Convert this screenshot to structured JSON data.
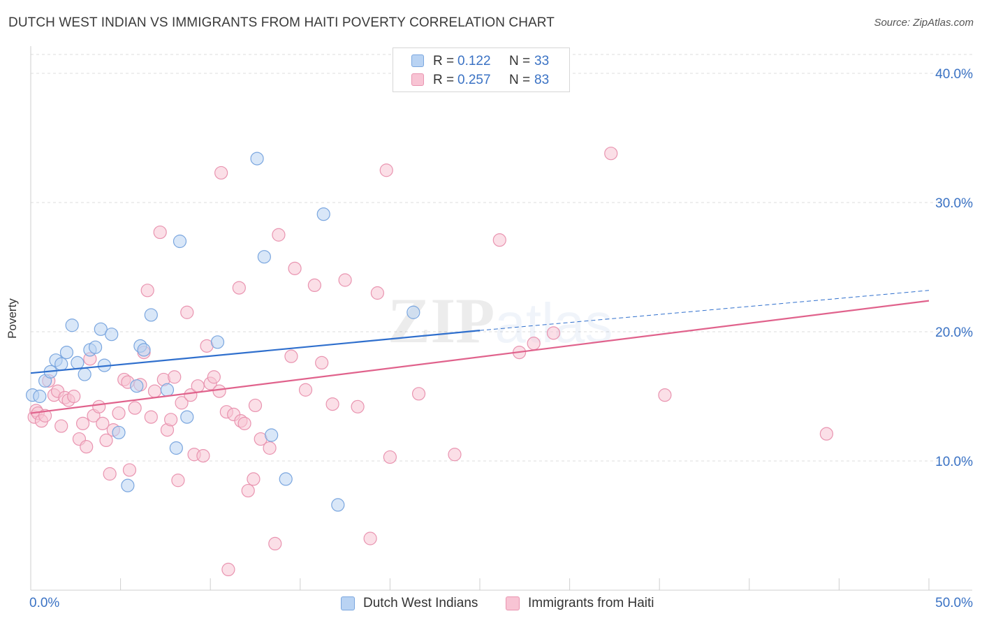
{
  "title": "DUTCH WEST INDIAN VS IMMIGRANTS FROM HAITI POVERTY CORRELATION CHART",
  "source": "Source: ZipAtlas.com",
  "watermark": "ZIPatlas",
  "colors": {
    "blue_fill": "#b9d3f3",
    "blue_stroke": "#7aa6df",
    "blue_line": "#2f6fcd",
    "pink_fill": "#f8c4d4",
    "pink_stroke": "#e994b0",
    "pink_line": "#e0628c",
    "tick_label": "#3a72c4",
    "grid": "#dcdcdc"
  },
  "legend": {
    "r_label": "R =",
    "n_label": "N =",
    "series": [
      {
        "r": "0.122",
        "n": "33"
      },
      {
        "r": "0.257",
        "n": "83"
      }
    ]
  },
  "chart_data": {
    "type": "scatter",
    "title": "DUTCH WEST INDIAN VS IMMIGRANTS FROM HAITI POVERTY CORRELATION CHART",
    "xlabel": "",
    "ylabel": "Poverty",
    "xlim": [
      0,
      50
    ],
    "ylim": [
      0,
      42
    ],
    "x_tick_labels": [
      "0.0%",
      "50.0%"
    ],
    "y_ticks": [
      10,
      20,
      30,
      40
    ],
    "y_tick_labels": [
      "10.0%",
      "20.0%",
      "30.0%",
      "40.0%"
    ],
    "grid": true,
    "legend_position": "top-center",
    "series": [
      {
        "name": "Dutch West Indians",
        "r": 0.122,
        "n": 33,
        "trend": {
          "x0": 0,
          "y0": 16.8,
          "x1": 25,
          "y1": 20.1,
          "dashed_to": 50,
          "dashed_y": 23.2
        },
        "points": [
          [
            0.1,
            15.1
          ],
          [
            0.5,
            15.0
          ],
          [
            0.8,
            16.2
          ],
          [
            1.1,
            16.9
          ],
          [
            1.4,
            17.8
          ],
          [
            1.7,
            17.5
          ],
          [
            2.0,
            18.4
          ],
          [
            2.3,
            20.5
          ],
          [
            2.6,
            17.6
          ],
          [
            3.0,
            16.7
          ],
          [
            3.3,
            18.6
          ],
          [
            3.6,
            18.8
          ],
          [
            3.9,
            20.2
          ],
          [
            4.1,
            17.4
          ],
          [
            4.5,
            19.8
          ],
          [
            4.9,
            12.2
          ],
          [
            5.4,
            8.1
          ],
          [
            5.9,
            15.8
          ],
          [
            6.1,
            18.9
          ],
          [
            6.3,
            18.6
          ],
          [
            6.7,
            21.3
          ],
          [
            7.6,
            15.5
          ],
          [
            8.1,
            11.0
          ],
          [
            8.3,
            27.0
          ],
          [
            8.7,
            13.4
          ],
          [
            10.4,
            19.2
          ],
          [
            12.6,
            33.4
          ],
          [
            13.0,
            25.8
          ],
          [
            13.4,
            12.0
          ],
          [
            14.2,
            8.6
          ],
          [
            16.3,
            29.1
          ],
          [
            17.1,
            6.6
          ],
          [
            21.3,
            21.5
          ]
        ]
      },
      {
        "name": "Immigrants from Haiti",
        "r": 0.257,
        "n": 83,
        "trend": {
          "x0": 0,
          "y0": 13.7,
          "x1": 50,
          "y1": 22.4
        },
        "points": [
          [
            0.2,
            13.4
          ],
          [
            0.3,
            13.9
          ],
          [
            0.4,
            13.7
          ],
          [
            0.6,
            13.1
          ],
          [
            0.8,
            13.5
          ],
          [
            1.0,
            16.2
          ],
          [
            1.3,
            15.1
          ],
          [
            1.5,
            15.4
          ],
          [
            1.7,
            12.7
          ],
          [
            1.9,
            14.9
          ],
          [
            2.1,
            14.7
          ],
          [
            2.4,
            15.0
          ],
          [
            2.7,
            11.7
          ],
          [
            2.9,
            12.9
          ],
          [
            3.1,
            11.1
          ],
          [
            3.3,
            17.9
          ],
          [
            3.5,
            13.5
          ],
          [
            3.8,
            14.2
          ],
          [
            4.0,
            12.9
          ],
          [
            4.2,
            11.6
          ],
          [
            4.4,
            9.0
          ],
          [
            4.6,
            12.4
          ],
          [
            4.9,
            13.7
          ],
          [
            5.2,
            16.3
          ],
          [
            5.4,
            16.1
          ],
          [
            5.5,
            9.3
          ],
          [
            5.8,
            14.1
          ],
          [
            6.1,
            15.9
          ],
          [
            6.3,
            18.4
          ],
          [
            6.5,
            23.2
          ],
          [
            6.7,
            13.4
          ],
          [
            6.9,
            15.4
          ],
          [
            7.2,
            27.7
          ],
          [
            7.4,
            16.3
          ],
          [
            7.6,
            12.4
          ],
          [
            7.8,
            13.2
          ],
          [
            8.0,
            16.5
          ],
          [
            8.2,
            8.5
          ],
          [
            8.4,
            14.5
          ],
          [
            8.7,
            21.5
          ],
          [
            8.9,
            15.1
          ],
          [
            9.1,
            10.5
          ],
          [
            9.3,
            15.8
          ],
          [
            9.6,
            10.4
          ],
          [
            9.8,
            18.9
          ],
          [
            10.0,
            16.0
          ],
          [
            10.2,
            16.5
          ],
          [
            10.5,
            15.4
          ],
          [
            10.6,
            32.3
          ],
          [
            10.9,
            13.8
          ],
          [
            11.0,
            1.6
          ],
          [
            11.3,
            13.6
          ],
          [
            11.6,
            23.4
          ],
          [
            11.7,
            13.1
          ],
          [
            11.9,
            12.9
          ],
          [
            12.1,
            7.7
          ],
          [
            12.4,
            8.6
          ],
          [
            12.5,
            14.3
          ],
          [
            12.8,
            11.7
          ],
          [
            13.3,
            11.0
          ],
          [
            13.6,
            3.6
          ],
          [
            13.8,
            27.5
          ],
          [
            14.5,
            18.1
          ],
          [
            14.7,
            24.9
          ],
          [
            15.3,
            15.5
          ],
          [
            15.8,
            23.6
          ],
          [
            16.2,
            17.6
          ],
          [
            16.8,
            14.4
          ],
          [
            17.5,
            24.0
          ],
          [
            18.2,
            14.2
          ],
          [
            18.9,
            4.0
          ],
          [
            19.3,
            23.0
          ],
          [
            19.8,
            32.5
          ],
          [
            20.0,
            10.3
          ],
          [
            21.6,
            15.2
          ],
          [
            23.6,
            10.5
          ],
          [
            26.1,
            27.1
          ],
          [
            27.2,
            18.4
          ],
          [
            28.0,
            19.1
          ],
          [
            29.1,
            19.9
          ],
          [
            32.3,
            33.8
          ],
          [
            35.3,
            15.1
          ],
          [
            44.3,
            12.1
          ]
        ]
      }
    ]
  }
}
